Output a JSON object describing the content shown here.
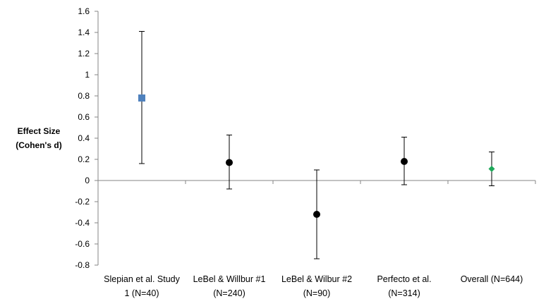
{
  "chart_data": {
    "type": "scatter",
    "title": "",
    "xlabel": "",
    "ylabel_lines": [
      "Effect Size",
      "(Cohen's d)"
    ],
    "ylim": [
      -0.8,
      1.6
    ],
    "ytick_step": 0.2,
    "ytick_labels": [
      "1.6",
      "1.4",
      "1.2",
      "1",
      "0.8",
      "0.6",
      "0.4",
      "0.2",
      "0",
      "-0.2",
      "-0.4",
      "-0.6",
      "-0.8"
    ],
    "grid": false,
    "categories": [
      [
        "Slepian et al. Study",
        "1 (N=40)"
      ],
      [
        "LeBel & Willbur #1",
        "(N=240)"
      ],
      [
        "LeBel & Wilbur #2",
        "(N=90)"
      ],
      [
        "Perfecto et al.",
        "(N=314)"
      ],
      [
        "Overall (N=644)"
      ]
    ],
    "points": [
      {
        "value": 0.78,
        "ci_low": 0.16,
        "ci_high": 1.41,
        "marker": "square",
        "color": "#4f81bd"
      },
      {
        "value": 0.17,
        "ci_low": -0.08,
        "ci_high": 0.43,
        "marker": "circle",
        "color": "#000000"
      },
      {
        "value": -0.32,
        "ci_low": -0.74,
        "ci_high": 0.1,
        "marker": "circle",
        "color": "#000000"
      },
      {
        "value": 0.18,
        "ci_low": -0.04,
        "ci_high": 0.41,
        "marker": "circle",
        "color": "#000000"
      },
      {
        "value": 0.11,
        "ci_low": -0.05,
        "ci_high": 0.27,
        "marker": "diamond",
        "color": "#1fa85a"
      }
    ],
    "colors": {
      "axis": "#868686",
      "errorbar": "#000000"
    }
  }
}
